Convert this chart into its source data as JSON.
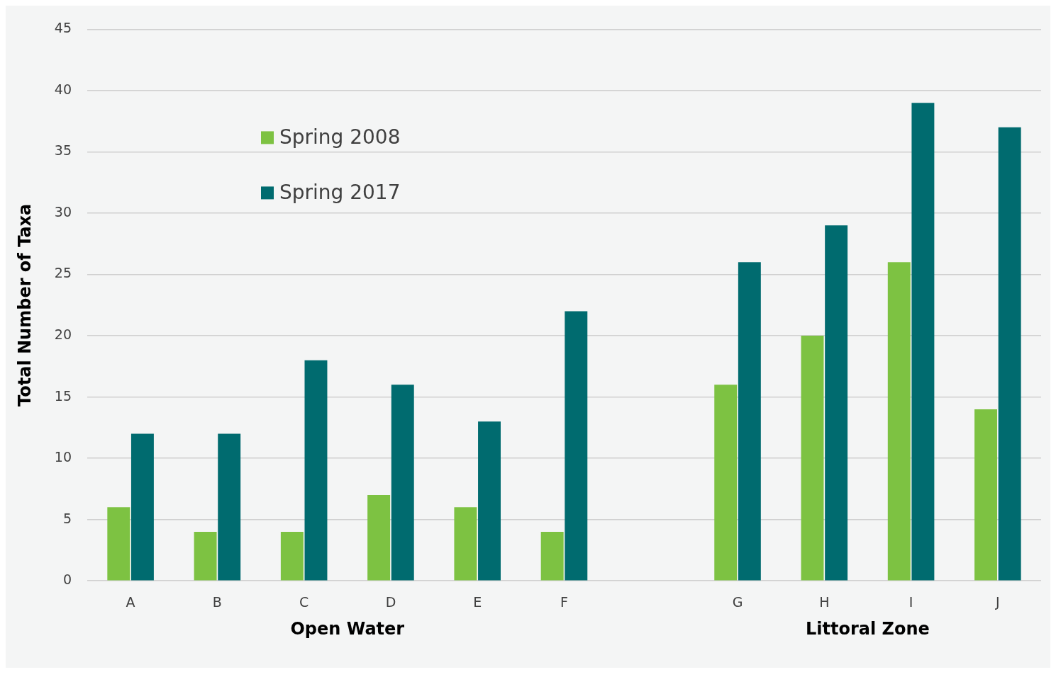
{
  "chart_data": {
    "type": "bar",
    "ylabel": "Total Number of Taxa",
    "categories": [
      "A",
      "B",
      "C",
      "D",
      "E",
      "F",
      null,
      "G",
      "H",
      "I",
      "J"
    ],
    "series": [
      {
        "name": "Spring 2008",
        "color": "#7dc242",
        "values": [
          6,
          4,
          4,
          7,
          6,
          4,
          null,
          16,
          20,
          26,
          14
        ]
      },
      {
        "name": "Spring 2017",
        "color": "#006b6f",
        "values": [
          12,
          12,
          18,
          16,
          13,
          22,
          null,
          26,
          29,
          39,
          37
        ]
      }
    ],
    "ylim": [
      0,
      45
    ],
    "yticks": [
      0,
      5,
      10,
      15,
      20,
      25,
      30,
      35,
      40,
      45
    ],
    "grid": "y",
    "legend": "top left",
    "annotations": [
      "Open Water",
      "Littoral Zone"
    ]
  }
}
